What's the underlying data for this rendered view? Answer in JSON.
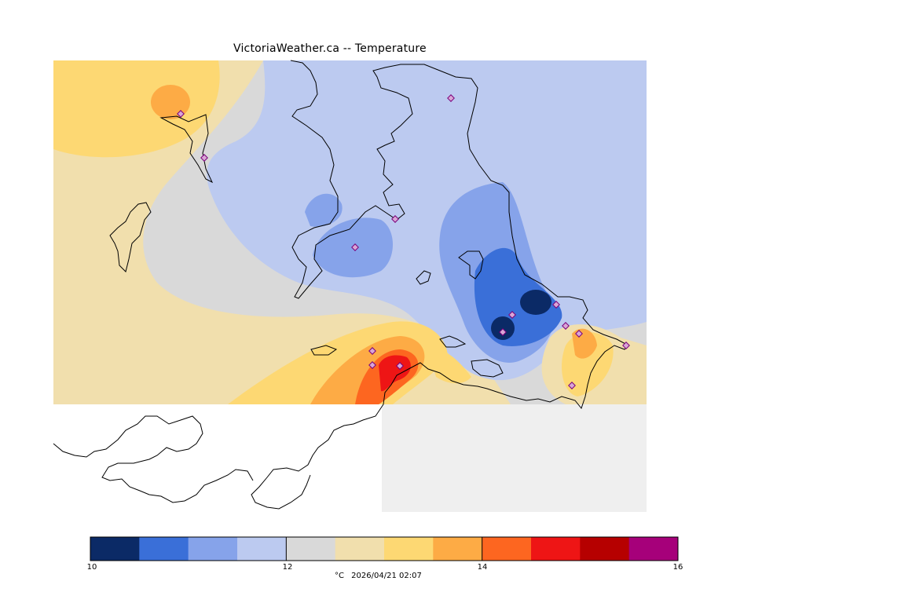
{
  "title": "VictoriaWeather.ca -- Temperature",
  "map": {
    "variable": "Temperature",
    "station_marker_icon": "diamond-icon",
    "contour_levels": [
      10,
      10.5,
      11,
      11.5,
      12,
      12.5,
      13,
      13.5,
      14,
      14.5,
      15,
      15.5,
      16
    ],
    "colors": [
      "#0b2a66",
      "#3a6fd8",
      "#86a3ea",
      "#bccaf0",
      "#d9d9d9",
      "#f1dfad",
      "#fdd873",
      "#fdab45",
      "#fd6620",
      "#ee1515",
      "#b60000",
      "#a6007a"
    ],
    "land_color": "#efefef",
    "coast_color": "#000000"
  },
  "colorbar": {
    "tick_labels": [
      "10",
      "12",
      "14",
      "16"
    ],
    "min": 10,
    "max": 16
  },
  "footer": {
    "unit": "°C",
    "timestamp": "2026/04/21 02:07"
  }
}
